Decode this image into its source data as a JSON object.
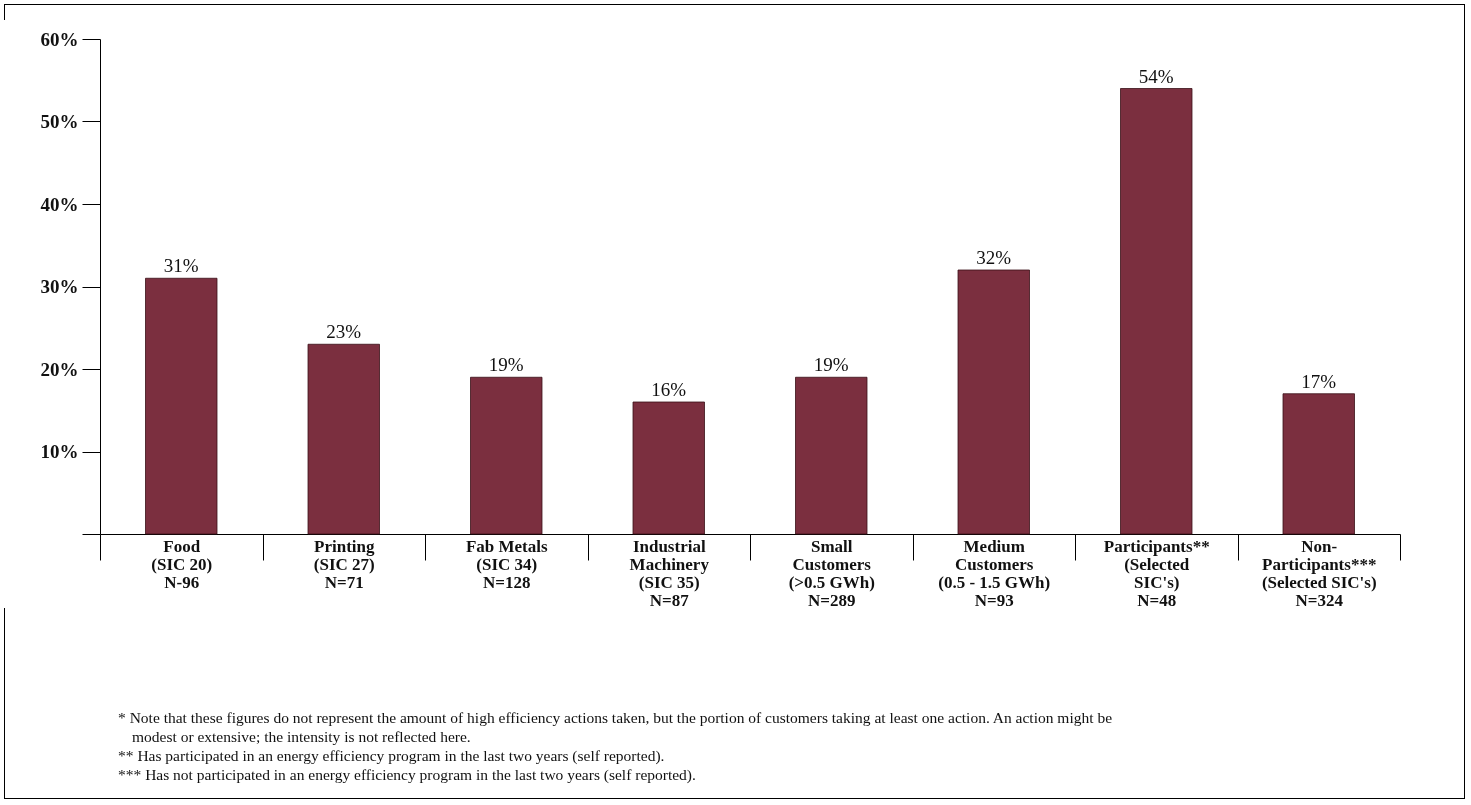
{
  "chart_data": {
    "type": "bar",
    "categories": [
      "Food\n(SIC 20)\nN-96",
      "Printing\n(SIC 27)\nN=71",
      "Fab Metals\n(SIC 34)\nN=128",
      "Industrial\nMachinery\n(SIC 35)\nN=87",
      "Small\nCustomers\n(>0.5 GWh)\nN=289",
      "Medium\nCustomers\n(0.5 - 1.5 GWh)\nN=93",
      "Participants**\n(Selected\nSIC's)\nN=48",
      "Non-\nParticipants***\n(Selected SIC's)\nN=324"
    ],
    "values": [
      31,
      23,
      19,
      16,
      19,
      32,
      54,
      17
    ],
    "value_labels": [
      "31%",
      "23%",
      "19%",
      "16%",
      "19%",
      "32%",
      "54%",
      "17%"
    ],
    "color": "#7b2f3f",
    "ylim": [
      0,
      60
    ],
    "yticks": [
      {
        "value": 0,
        "label": null
      },
      {
        "value": 10,
        "label": "10%"
      },
      {
        "value": 20,
        "label": "20%"
      },
      {
        "value": 30,
        "label": "30%"
      },
      {
        "value": 40,
        "label": "40%"
      },
      {
        "value": 50,
        "label": "50%"
      },
      {
        "value": 60,
        "label": "60%"
      }
    ],
    "grid": false,
    "annotations": [
      "* Note that these figures do not represent the amount of high efficiency actions taken, but the portion of customers taking at least one action.  An action might be modest or extensive; the intensity is not reflected here.",
      "** Has participated in an energy efficiency program in the last two years (self reported).",
      "*** Has not participated in an energy efficiency program in the last two years (self reported)."
    ]
  }
}
